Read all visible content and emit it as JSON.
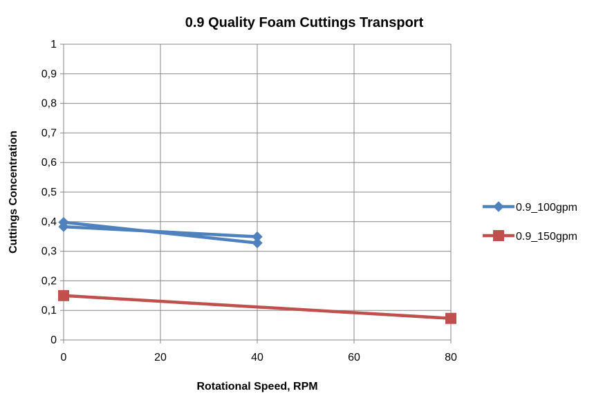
{
  "chart_data": {
    "type": "line",
    "title": "0.9 Quality Foam Cuttings Transport",
    "xlabel": "Rotational Speed, RPM",
    "ylabel": "Cuttings Concentration",
    "xlim": [
      0,
      80
    ],
    "ylim": [
      0,
      1
    ],
    "x_ticks": [
      "0",
      "20",
      "40",
      "60",
      "80"
    ],
    "x_tick_values": [
      0,
      20,
      40,
      60,
      80
    ],
    "y_ticks": [
      "0",
      "0,1",
      "0,2",
      "0,3",
      "0,4",
      "0,5",
      "0,6",
      "0,7",
      "0,8",
      "0,9",
      "1"
    ],
    "y_tick_values": [
      0,
      0.1,
      0.2,
      0.3,
      0.4,
      0.5,
      0.6,
      0.7,
      0.8,
      0.9,
      1
    ],
    "grid": true,
    "legend_position": "right",
    "series": [
      {
        "name": "0.9_100gpm",
        "color": "#4f81bd",
        "marker": "diamond",
        "points": [
          {
            "x": 0,
            "y": 0.398
          },
          {
            "x": 40,
            "y": 0.328
          },
          {
            "x": 40,
            "y": 0.349
          },
          {
            "x": 0,
            "y": 0.383
          }
        ]
      },
      {
        "name": "0.9_150gpm",
        "color": "#c0504d",
        "marker": "square",
        "points": [
          {
            "x": 0,
            "y": 0.15
          },
          {
            "x": 80,
            "y": 0.073
          }
        ]
      }
    ]
  }
}
